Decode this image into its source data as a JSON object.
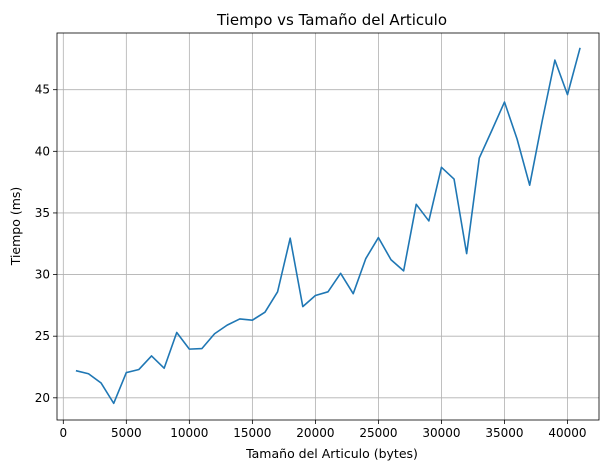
{
  "chart_data": {
    "type": "line",
    "title": "Tiempo vs Tamaño del Articulo",
    "xlabel": "Tamaño del Articulo (bytes)",
    "ylabel": "Tiempo (ms)",
    "grid": true,
    "xlim": [
      -500,
      42500
    ],
    "ylim": [
      18.2,
      49.6
    ],
    "xticks": [
      0,
      5000,
      10000,
      15000,
      20000,
      25000,
      30000,
      35000,
      40000
    ],
    "yticks": [
      20,
      25,
      30,
      35,
      40,
      45
    ],
    "series": [
      {
        "color": "#1f77b4",
        "x": [
          1000,
          2000,
          3000,
          4000,
          5000,
          6000,
          7000,
          8000,
          9000,
          10000,
          11000,
          12000,
          13000,
          14000,
          15000,
          16000,
          17000,
          18000,
          19000,
          20000,
          21000,
          22000,
          23000,
          24000,
          25000,
          26000,
          27000,
          28000,
          29000,
          30000,
          31000,
          32000,
          33000,
          34000,
          35000,
          36000,
          37000,
          38000,
          39000,
          40000,
          41000
        ],
        "y": [
          22.2,
          21.95,
          21.2,
          19.55,
          22.05,
          22.3,
          23.4,
          22.4,
          25.3,
          23.95,
          24.0,
          25.2,
          25.9,
          26.4,
          26.3,
          26.95,
          28.6,
          32.95,
          27.4,
          28.3,
          28.6,
          30.1,
          28.45,
          31.3,
          33.0,
          31.2,
          30.3,
          35.7,
          34.35,
          38.7,
          37.75,
          31.7,
          39.45,
          41.7,
          44.0,
          41.0,
          37.25,
          42.5,
          47.4,
          44.6,
          48.4
        ]
      }
    ]
  }
}
